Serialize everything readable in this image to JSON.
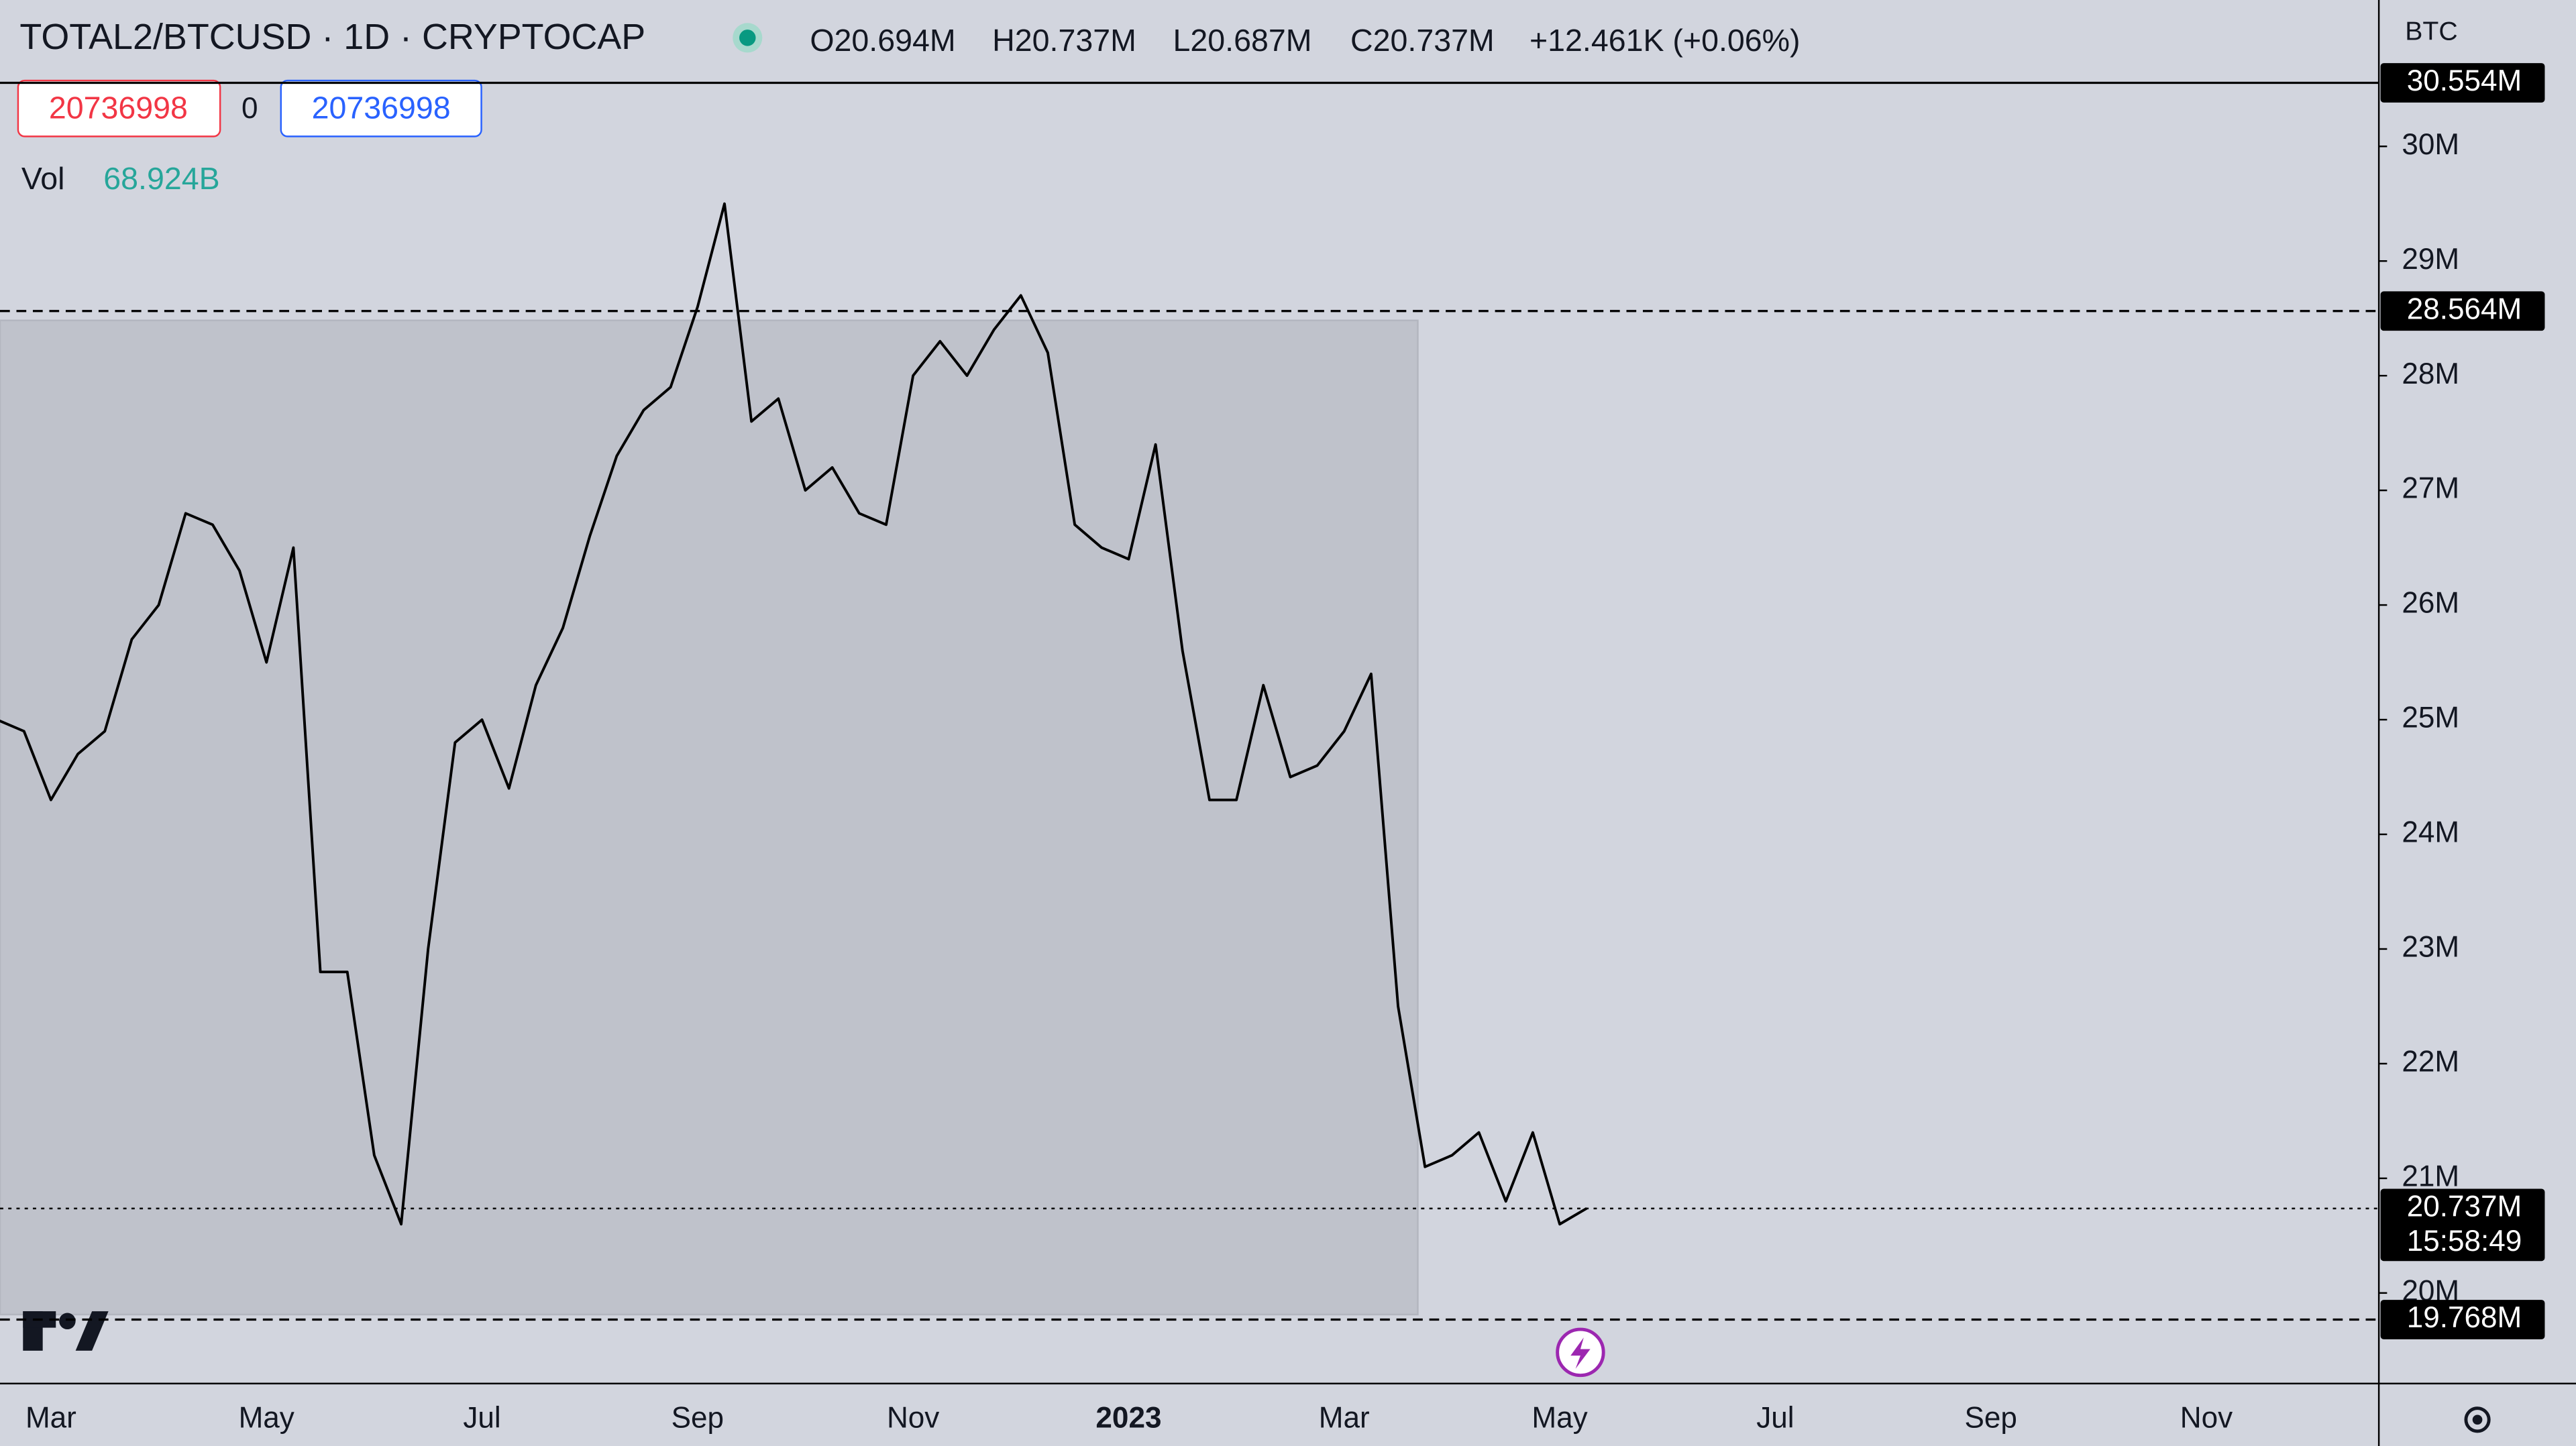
{
  "header": {
    "symbol": "TOTAL2/BTCUSD · 1D · CRYPTOCAP",
    "open": "O20.694M",
    "high": "H20.737M",
    "low": "L20.687M",
    "close": "C20.737M",
    "change": "+12.461K (+0.06%)",
    "sell": "20736998",
    "spread": "0",
    "buy": "20736998",
    "vol_label": "Vol",
    "vol_value": "68.924B",
    "currency": "BTC"
  },
  "chart_data": {
    "type": "line",
    "categories": [
      null,
      null,
      "Mar",
      null,
      null,
      null,
      null,
      null,
      null,
      null,
      "May",
      null,
      null,
      null,
      null,
      null,
      null,
      null,
      "Jul",
      null,
      null,
      null,
      null,
      null,
      null,
      null,
      "Sep",
      null,
      null,
      null,
      null,
      null,
      null,
      null,
      "Nov",
      null,
      null,
      null,
      null,
      null,
      null,
      null,
      "2023",
      null,
      null,
      null,
      null,
      null,
      null,
      null,
      "Mar",
      null,
      null,
      null,
      null,
      null,
      null,
      null,
      "May",
      null,
      null,
      null,
      null,
      null,
      null,
      null,
      "Jul",
      null,
      null,
      null,
      null,
      null,
      null,
      null,
      "Sep",
      null,
      null,
      null,
      null,
      null,
      null,
      null,
      "Nov",
      null,
      null,
      null,
      null,
      null,
      null,
      null
    ],
    "series": [
      {
        "name": "TOTAL2/BTCUSD",
        "color": "#000000",
        "values": [
          25.0,
          24.9,
          24.3,
          24.7,
          24.9,
          25.7,
          26.0,
          26.8,
          26.7,
          26.3,
          25.5,
          26.5,
          22.8,
          22.8,
          21.2,
          20.6,
          23.0,
          24.8,
          25.0,
          24.4,
          25.3,
          25.8,
          26.6,
          27.3,
          27.7,
          27.9,
          28.6,
          29.5,
          27.6,
          27.8,
          27.0,
          27.2,
          26.8,
          26.7,
          28.0,
          28.3,
          28.0,
          28.4,
          28.7,
          28.2,
          26.7,
          26.5,
          26.4,
          27.4,
          25.6,
          24.3,
          24.3,
          25.3,
          24.5,
          24.6,
          24.9,
          25.4,
          22.5,
          21.1,
          21.2,
          21.4,
          20.8,
          21.4,
          20.6,
          20.737,
          null,
          null,
          null,
          null,
          null,
          null,
          null,
          null,
          null,
          null,
          null,
          null,
          null,
          null,
          null,
          null,
          null,
          null,
          null,
          null,
          null,
          null,
          null,
          null,
          null,
          null,
          null,
          null,
          null,
          null
        ]
      }
    ],
    "ylim": [
      19.21,
      30.56
    ],
    "yticks": [
      {
        "value": 20,
        "label": "20M"
      },
      {
        "value": 21,
        "label": "21M"
      },
      {
        "value": 22,
        "label": "22M"
      },
      {
        "value": 23,
        "label": "23M"
      },
      {
        "value": 24,
        "label": "24M"
      },
      {
        "value": 25,
        "label": "25M"
      },
      {
        "value": 26,
        "label": "26M"
      },
      {
        "value": 27,
        "label": "27M"
      },
      {
        "value": 28,
        "label": "28M"
      },
      {
        "value": 29,
        "label": "29M"
      },
      {
        "value": 30,
        "label": "30M"
      }
    ],
    "hlines": [
      {
        "value": 30.554,
        "label": "30.554M",
        "style": "solid"
      },
      {
        "value": 28.564,
        "label": "28.564M",
        "style": "dashed"
      },
      {
        "value": 20.737,
        "label": "20.737M",
        "style": "dotted",
        "countdown": "15:58:49"
      },
      {
        "value": 19.768,
        "label": "19.768M",
        "style": "dashed"
      }
    ]
  }
}
